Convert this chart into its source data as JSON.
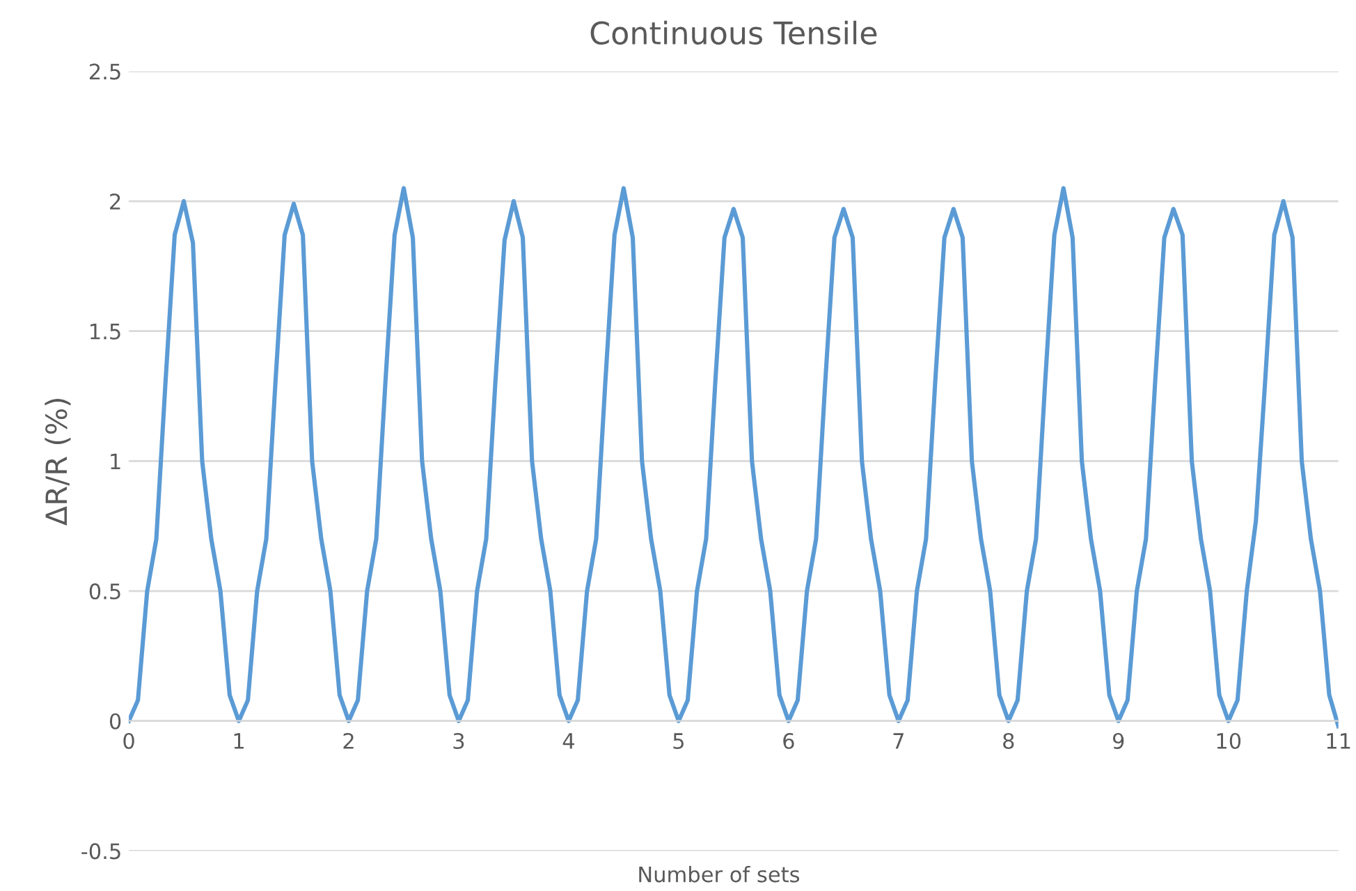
{
  "chart_data": {
    "type": "line",
    "title": "Continuous Tensile",
    "xlabel": "Number of sets",
    "ylabel": "ΔR/R (%)",
    "x": [
      0,
      0.083,
      0.167,
      0.25,
      0.333,
      0.417,
      0.5,
      0.583,
      0.667,
      0.75,
      0.833,
      0.917,
      1,
      1.083,
      1.167,
      1.25,
      1.333,
      1.417,
      1.5,
      1.583,
      1.667,
      1.75,
      1.833,
      1.917,
      2,
      2.083,
      2.167,
      2.25,
      2.333,
      2.417,
      2.5,
      2.583,
      2.667,
      2.75,
      2.833,
      2.917,
      3,
      3.083,
      3.167,
      3.25,
      3.333,
      3.417,
      3.5,
      3.583,
      3.667,
      3.75,
      3.833,
      3.917,
      4,
      4.083,
      4.167,
      4.25,
      4.333,
      4.417,
      4.5,
      4.583,
      4.667,
      4.75,
      4.833,
      4.917,
      5,
      5.083,
      5.167,
      5.25,
      5.333,
      5.417,
      5.5,
      5.583,
      5.667,
      5.75,
      5.833,
      5.917,
      6,
      6.083,
      6.167,
      6.25,
      6.333,
      6.417,
      6.5,
      6.583,
      6.667,
      6.75,
      6.833,
      6.917,
      7,
      7.083,
      7.167,
      7.25,
      7.333,
      7.417,
      7.5,
      7.583,
      7.667,
      7.75,
      7.833,
      7.917,
      8,
      8.083,
      8.167,
      8.25,
      8.333,
      8.417,
      8.5,
      8.583,
      8.667,
      8.75,
      8.833,
      8.917,
      9,
      9.083,
      9.167,
      9.25,
      9.333,
      9.417,
      9.5,
      9.583,
      9.667,
      9.75,
      9.833,
      9.917,
      10,
      10.083,
      10.167,
      10.25,
      10.333,
      10.417,
      10.5,
      10.583,
      10.667,
      10.75,
      10.833,
      10.917,
      11
    ],
    "series": [
      {
        "color": "#5b9bd5",
        "values": [
          0,
          0.08,
          0.5,
          0.7,
          1.3,
          1.87,
          2.0,
          1.84,
          1.0,
          0.7,
          0.5,
          0.1,
          0,
          0.08,
          0.5,
          0.7,
          1.3,
          1.87,
          1.99,
          1.87,
          1.0,
          0.7,
          0.5,
          0.1,
          0,
          0.08,
          0.5,
          0.7,
          1.3,
          1.87,
          2.05,
          1.86,
          1.0,
          0.7,
          0.5,
          0.1,
          0,
          0.08,
          0.5,
          0.7,
          1.3,
          1.85,
          2.0,
          1.86,
          1.0,
          0.7,
          0.5,
          0.1,
          0,
          0.08,
          0.5,
          0.7,
          1.3,
          1.87,
          2.05,
          1.86,
          1.0,
          0.7,
          0.5,
          0.1,
          0,
          0.08,
          0.5,
          0.7,
          1.3,
          1.86,
          1.97,
          1.86,
          1.0,
          0.7,
          0.5,
          0.1,
          0,
          0.08,
          0.5,
          0.7,
          1.3,
          1.86,
          1.97,
          1.86,
          1.0,
          0.7,
          0.5,
          0.1,
          0,
          0.08,
          0.5,
          0.7,
          1.3,
          1.86,
          1.97,
          1.86,
          1.0,
          0.7,
          0.5,
          0.1,
          0,
          0.08,
          0.5,
          0.7,
          1.3,
          1.87,
          2.05,
          1.86,
          1.0,
          0.7,
          0.5,
          0.1,
          0,
          0.08,
          0.5,
          0.7,
          1.3,
          1.86,
          1.97,
          1.87,
          1.0,
          0.7,
          0.5,
          0.1,
          0,
          0.08,
          0.5,
          0.77,
          1.3,
          1.87,
          2.0,
          1.86,
          1.0,
          0.7,
          0.5,
          0.1,
          -0.02
        ]
      }
    ],
    "xlim": [
      0,
      11
    ],
    "xticks": [
      0,
      1,
      2,
      3,
      4,
      5,
      6,
      7,
      8,
      9,
      10,
      11
    ],
    "ylim": [
      -0.5,
      2.5
    ],
    "yticks": [
      -0.5,
      0,
      0.5,
      1,
      1.5,
      2,
      2.5
    ],
    "grid": "y",
    "marker": "none",
    "line_style": "solid"
  }
}
